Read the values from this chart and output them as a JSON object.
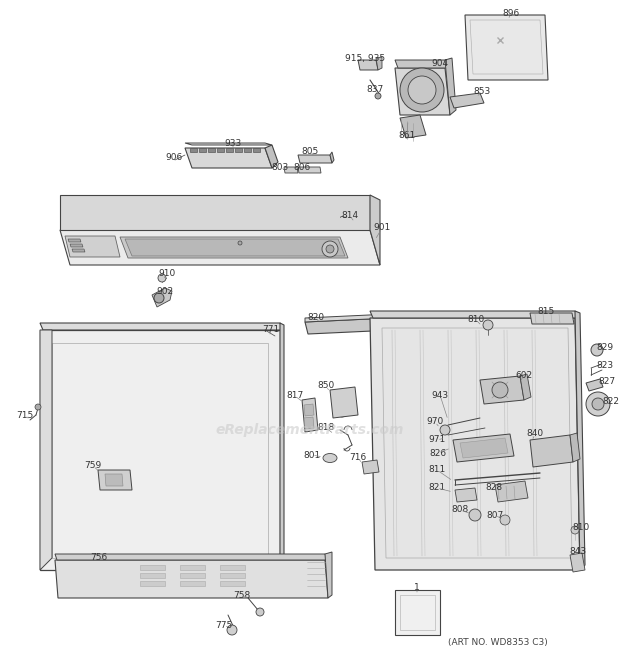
{
  "bg_color": "#ffffff",
  "line_color": "#444444",
  "label_color": "#333333",
  "watermark": "eReplacementParts.com",
  "subtitle": "(ART NO. WD8353 C3)",
  "fig_w": 6.2,
  "fig_h": 6.6,
  "dpi": 100
}
